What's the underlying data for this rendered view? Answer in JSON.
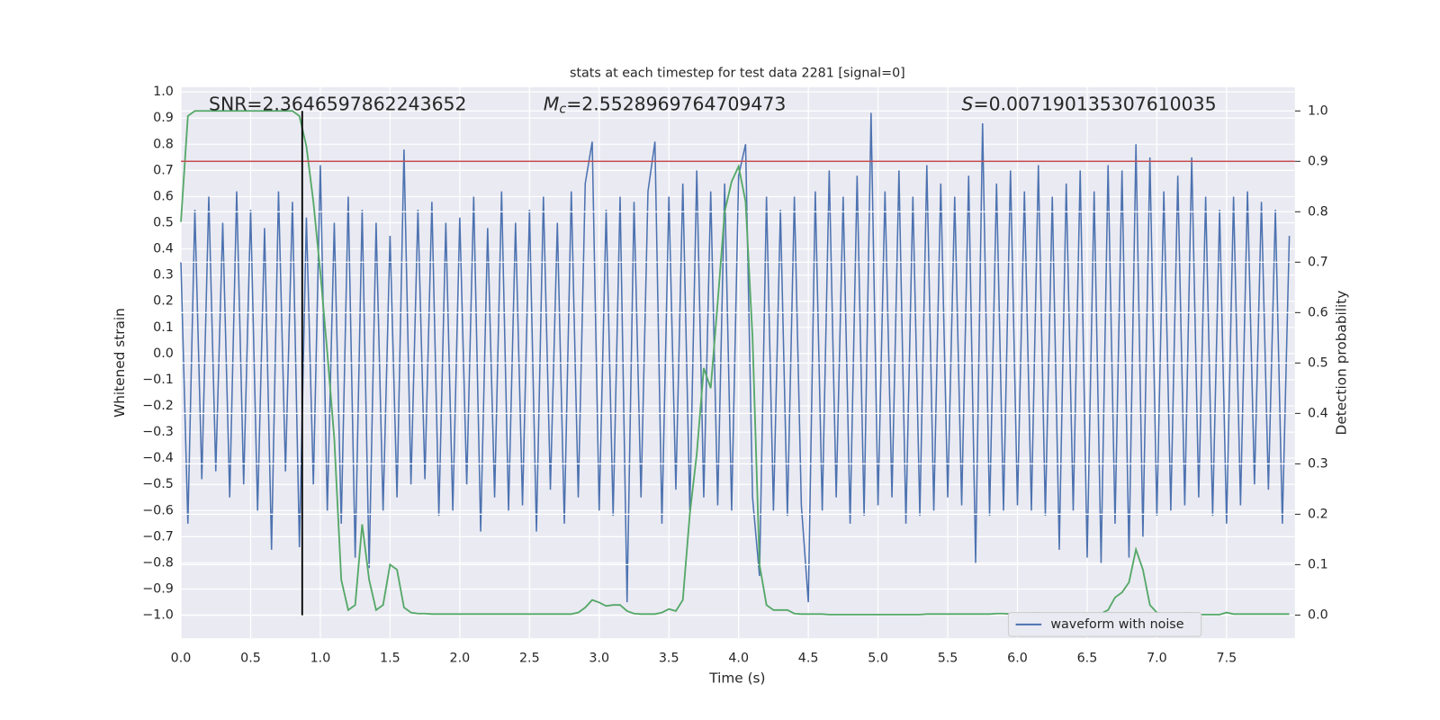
{
  "chart_data": {
    "type": "line",
    "title": "stats at each timestep for test data 2281 [signal=0]",
    "xlabel": "Time (s)",
    "ylabel": "Whitened strain",
    "y2label": "Detection probability",
    "annotations": [
      {
        "label": "SNR",
        "text": "=2.3646597862243652",
        "x": 0.2
      },
      {
        "label": "M",
        "sub": "c",
        "italic": true,
        "text": "=2.5528969764709473",
        "x": 2.6
      },
      {
        "label": "S",
        "italic": true,
        "text": "=0.007190135307610035",
        "x": 5.6
      }
    ],
    "x": [
      0,
      0.05,
      0.1,
      0.15,
      0.2,
      0.25,
      0.3,
      0.35,
      0.4,
      0.45,
      0.5,
      0.55,
      0.6,
      0.65,
      0.7,
      0.75,
      0.8,
      0.85,
      0.9,
      0.95,
      1,
      1.05,
      1.1,
      1.15,
      1.2,
      1.25,
      1.3,
      1.35,
      1.4,
      1.45,
      1.5,
      1.55,
      1.6,
      1.65,
      1.7,
      1.75,
      1.8,
      1.85,
      1.9,
      1.95,
      2,
      2.05,
      2.1,
      2.15,
      2.2,
      2.25,
      2.3,
      2.35,
      2.4,
      2.45,
      2.5,
      2.55,
      2.6,
      2.65,
      2.7,
      2.75,
      2.8,
      2.85,
      2.9,
      2.95,
      3,
      3.05,
      3.1,
      3.15,
      3.2,
      3.25,
      3.3,
      3.35,
      3.4,
      3.45,
      3.5,
      3.55,
      3.6,
      3.65,
      3.7,
      3.75,
      3.8,
      3.85,
      3.9,
      3.95,
      4,
      4.05,
      4.1,
      4.15,
      4.2,
      4.25,
      4.3,
      4.35,
      4.4,
      4.45,
      4.5,
      4.55,
      4.6,
      4.65,
      4.7,
      4.75,
      4.8,
      4.85,
      4.9,
      4.95,
      5,
      5.05,
      5.1,
      5.15,
      5.2,
      5.25,
      5.3,
      5.35,
      5.4,
      5.45,
      5.5,
      5.55,
      5.6,
      5.65,
      5.7,
      5.75,
      5.8,
      5.85,
      5.9,
      5.95,
      6,
      6.05,
      6.1,
      6.15,
      6.2,
      6.25,
      6.3,
      6.35,
      6.4,
      6.45,
      6.5,
      6.55,
      6.6,
      6.65,
      6.7,
      6.75,
      6.8,
      6.85,
      6.9,
      6.95,
      7,
      7.05,
      7.1,
      7.15,
      7.2,
      7.25,
      7.3,
      7.35,
      7.4,
      7.45,
      7.5,
      7.55,
      7.6,
      7.65,
      7.7,
      7.75,
      7.8,
      7.85,
      7.9,
      7.95
    ],
    "series": [
      {
        "name": "waveform with noise",
        "color": "#4c72b0",
        "axis": "y",
        "values": [
          0.35,
          -0.65,
          0.55,
          -0.48,
          0.6,
          -0.45,
          0.5,
          -0.55,
          0.62,
          -0.5,
          0.55,
          -0.6,
          0.48,
          -0.75,
          0.62,
          -0.45,
          0.58,
          -0.74,
          0.52,
          -0.5,
          0.72,
          -0.6,
          0.5,
          -0.65,
          0.6,
          -0.78,
          0.55,
          -0.82,
          0.5,
          -0.6,
          0.45,
          -0.55,
          0.78,
          -0.5,
          0.55,
          -0.48,
          0.58,
          -0.62,
          0.5,
          -0.6,
          0.52,
          -0.5,
          0.6,
          -0.68,
          0.48,
          -0.55,
          0.62,
          -0.6,
          0.5,
          -0.58,
          0.55,
          -0.68,
          0.6,
          -0.52,
          0.5,
          -0.65,
          0.62,
          -0.55,
          0.65,
          0.81,
          -0.6,
          0.55,
          -0.62,
          0.6,
          -0.95,
          0.58,
          -0.55,
          0.62,
          0.81,
          -0.65,
          0.6,
          -0.52,
          0.65,
          -0.6,
          0.7,
          -0.55,
          0.62,
          -0.58,
          0.65,
          -0.6,
          0.68,
          0.8,
          -0.55,
          -0.85,
          0.6,
          -0.6,
          0.55,
          -0.62,
          0.6,
          -0.58,
          -0.95,
          0.62,
          -0.6,
          0.7,
          -0.55,
          0.6,
          -0.65,
          0.68,
          -0.62,
          0.92,
          -0.58,
          0.62,
          -0.55,
          0.7,
          -0.65,
          0.6,
          -0.62,
          0.72,
          -0.6,
          0.65,
          -0.55,
          0.6,
          -0.58,
          0.68,
          -0.8,
          0.88,
          -0.62,
          0.65,
          -0.6,
          0.7,
          -0.58,
          0.62,
          -0.6,
          0.72,
          -0.62,
          0.6,
          -0.75,
          0.65,
          -0.6,
          0.7,
          -0.78,
          0.62,
          -0.8,
          0.72,
          -0.65,
          0.7,
          -0.78,
          0.8,
          -0.7,
          0.75,
          -0.62,
          0.62,
          -0.6,
          0.68,
          -0.58,
          0.75,
          -0.55,
          0.6,
          -0.62,
          0.55,
          -0.65,
          0.6,
          -0.58,
          0.62,
          -0.5,
          0.58,
          -0.52,
          0.55,
          -0.65,
          0.45
        ]
      },
      {
        "color": "#55a868",
        "axis": "y2",
        "values": [
          0.78,
          0.99,
          1.0,
          1.0,
          1.0,
          1.0,
          1.0,
          1.0,
          1.0,
          1.0,
          1.0,
          1.0,
          1.0,
          1.0,
          1.0,
          1.0,
          1.0,
          0.99,
          0.93,
          0.82,
          0.68,
          0.52,
          0.35,
          0.07,
          0.01,
          0.02,
          0.18,
          0.07,
          0.01,
          0.02,
          0.1,
          0.09,
          0.015,
          0.005,
          0.003,
          0.003,
          0.002,
          0.002,
          0.002,
          0.002,
          0.002,
          0.002,
          0.002,
          0.002,
          0.002,
          0.002,
          0.002,
          0.002,
          0.002,
          0.002,
          0.002,
          0.002,
          0.002,
          0.002,
          0.002,
          0.002,
          0.002,
          0.005,
          0.015,
          0.03,
          0.025,
          0.018,
          0.02,
          0.02,
          0.008,
          0.003,
          0.002,
          0.002,
          0.002,
          0.005,
          0.012,
          0.008,
          0.03,
          0.2,
          0.32,
          0.49,
          0.45,
          0.62,
          0.8,
          0.86,
          0.89,
          0.82,
          0.55,
          0.1,
          0.02,
          0.01,
          0.01,
          0.01,
          0.003,
          0.002,
          0.002,
          0.002,
          0.002,
          0.001,
          0.001,
          0.001,
          0.001,
          0.001,
          0.001,
          0.001,
          0.001,
          0.001,
          0.001,
          0.001,
          0.001,
          0.001,
          0.001,
          0.002,
          0.002,
          0.002,
          0.002,
          0.002,
          0.002,
          0.002,
          0.002,
          0.002,
          0.002,
          0.003,
          0.003,
          0.002,
          0.002,
          0.002,
          0.004,
          0.004,
          0.003,
          0.002,
          0.002,
          0.002,
          0.002,
          0.002,
          0.002,
          0.002,
          0.003,
          0.01,
          0.035,
          0.045,
          0.065,
          0.13,
          0.09,
          0.02,
          0.005,
          0.003,
          0.003,
          0.003,
          0.004,
          0.004,
          0.001,
          0.001,
          0.001,
          0.001,
          0.005,
          0.002,
          0.002,
          0.002,
          0.002,
          0.002,
          0.002,
          0.002,
          0.002,
          0.002
        ]
      }
    ],
    "threshold": 0.9,
    "threshold_color": "#c44e52",
    "marker_x": 0.87,
    "marker_color": "#000000",
    "xlim": [
      0,
      7.99
    ],
    "ylim": [
      -1.088,
      1.018
    ],
    "y2lim": [
      -0.046,
      1.047
    ],
    "xticks": [
      {
        "value": 0,
        "label": "0.0"
      },
      {
        "value": 0.5,
        "label": "0.5"
      },
      {
        "value": 1,
        "label": "1.0"
      },
      {
        "value": 1.5,
        "label": "1.5"
      },
      {
        "value": 2,
        "label": "2.0"
      },
      {
        "value": 2.5,
        "label": "2.5"
      },
      {
        "value": 3,
        "label": "3.0"
      },
      {
        "value": 3.5,
        "label": "3.5"
      },
      {
        "value": 4,
        "label": "4.0"
      },
      {
        "value": 4.5,
        "label": "4.5"
      },
      {
        "value": 5,
        "label": "5.0"
      },
      {
        "value": 5.5,
        "label": "5.5"
      },
      {
        "value": 6,
        "label": "6.0"
      },
      {
        "value": 6.5,
        "label": "6.5"
      },
      {
        "value": 7,
        "label": "7.0"
      },
      {
        "value": 7.5,
        "label": "7.5"
      }
    ],
    "yticks": [
      {
        "value": -1,
        "label": "−1.0"
      },
      {
        "value": -0.9,
        "label": "−0.9"
      },
      {
        "value": -0.8,
        "label": "−0.8"
      },
      {
        "value": -0.7,
        "label": "−0.7"
      },
      {
        "value": -0.6,
        "label": "−0.6"
      },
      {
        "value": -0.5,
        "label": "−0.5"
      },
      {
        "value": -0.4,
        "label": "−0.4"
      },
      {
        "value": -0.3,
        "label": "−0.3"
      },
      {
        "value": -0.2,
        "label": "−0.2"
      },
      {
        "value": -0.1,
        "label": "−0.1"
      },
      {
        "value": 0,
        "label": "0.0"
      },
      {
        "value": 0.1,
        "label": "0.1"
      },
      {
        "value": 0.2,
        "label": "0.2"
      },
      {
        "value": 0.3,
        "label": "0.3"
      },
      {
        "value": 0.4,
        "label": "0.4"
      },
      {
        "value": 0.5,
        "label": "0.5"
      },
      {
        "value": 0.6,
        "label": "0.6"
      },
      {
        "value": 0.7,
        "label": "0.7"
      },
      {
        "value": 0.8,
        "label": "0.8"
      },
      {
        "value": 0.9,
        "label": "0.9"
      },
      {
        "value": 1,
        "label": "1.0"
      }
    ],
    "y2ticks": [
      {
        "value": 0,
        "label": "0.0"
      },
      {
        "value": 0.1,
        "label": "0.1"
      },
      {
        "value": 0.2,
        "label": "0.2"
      },
      {
        "value": 0.3,
        "label": "0.3"
      },
      {
        "value": 0.4,
        "label": "0.4"
      },
      {
        "value": 0.5,
        "label": "0.5"
      },
      {
        "value": 0.6,
        "label": "0.6"
      },
      {
        "value": 0.7,
        "label": "0.7"
      },
      {
        "value": 0.8,
        "label": "0.8"
      },
      {
        "value": 0.9,
        "label": "0.9"
      },
      {
        "value": 1,
        "label": "1.0"
      }
    ],
    "grid": true,
    "legend": "lower right"
  }
}
